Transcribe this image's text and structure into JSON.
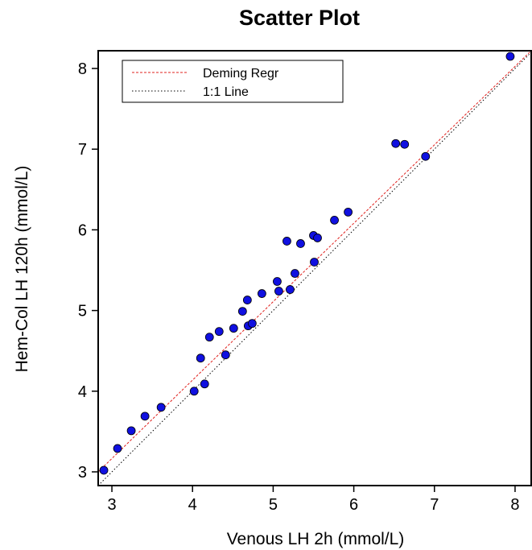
{
  "chart_data": {
    "type": "scatter",
    "title": "Scatter Plot",
    "xlabel": "Venous LH 2h (mmol/L)",
    "ylabel": "Hem-Col LH 120h (mmol/L)",
    "xlim": [
      2.83,
      8.2
    ],
    "ylim": [
      2.83,
      8.22
    ],
    "xticks": [
      3,
      4,
      5,
      6,
      7,
      8
    ],
    "yticks": [
      3,
      4,
      5,
      6,
      7,
      8
    ],
    "grid": false,
    "legend_position": "top-left",
    "legend": [
      {
        "label": "Deming Regr",
        "color": "#e0201c",
        "style": "dashed"
      },
      {
        "label": "1:1 Line",
        "color": "#000000",
        "style": "dotted"
      }
    ],
    "marker_color": "#1010e0",
    "series": [
      {
        "values": [
          [
            2.9,
            3.02
          ],
          [
            3.07,
            3.29
          ],
          [
            3.24,
            3.51
          ],
          [
            3.41,
            3.69
          ],
          [
            3.61,
            3.8
          ],
          [
            4.02,
            4.0
          ],
          [
            4.15,
            4.09
          ],
          [
            4.1,
            4.41
          ],
          [
            4.21,
            4.67
          ],
          [
            4.33,
            4.74
          ],
          [
            4.41,
            4.45
          ],
          [
            4.51,
            4.78
          ],
          [
            4.62,
            4.99
          ],
          [
            4.68,
            5.13
          ],
          [
            4.69,
            4.81
          ],
          [
            4.74,
            4.84
          ],
          [
            4.86,
            5.21
          ],
          [
            5.05,
            5.36
          ],
          [
            5.07,
            5.24
          ],
          [
            5.21,
            5.26
          ],
          [
            5.27,
            5.46
          ],
          [
            5.17,
            5.86
          ],
          [
            5.34,
            5.83
          ],
          [
            5.5,
            5.93
          ],
          [
            5.55,
            5.9
          ],
          [
            5.51,
            5.6
          ],
          [
            5.76,
            6.12
          ],
          [
            5.93,
            6.22
          ],
          [
            6.52,
            7.07
          ],
          [
            6.63,
            7.06
          ],
          [
            6.89,
            6.91
          ],
          [
            7.94,
            8.15
          ]
        ]
      }
    ],
    "lines": [
      {
        "name": "Deming Regr",
        "x": [
          2.83,
          8.2
        ],
        "y": [
          3.0,
          8.22
        ]
      },
      {
        "name": "1:1 Line",
        "x": [
          2.83,
          8.2
        ],
        "y": [
          2.83,
          8.2
        ]
      }
    ]
  }
}
